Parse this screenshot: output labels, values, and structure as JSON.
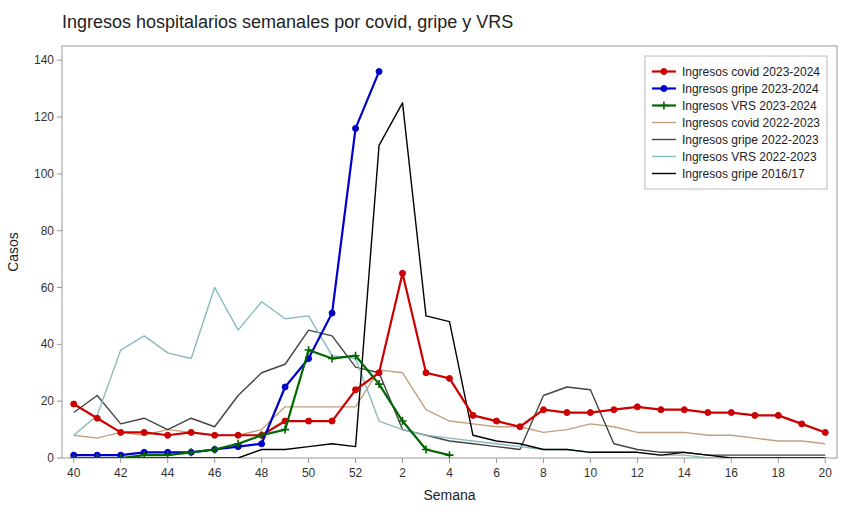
{
  "chart_data": {
    "type": "line",
    "title": "Ingresos hospitalarios semanales por covid, gripe y VRS",
    "x_label": "Semana",
    "y_label": "Casos",
    "categories": [
      "40",
      null,
      "42",
      null,
      "44",
      null,
      "46",
      null,
      "48",
      null,
      "50",
      null,
      "52",
      null,
      "2",
      null,
      "4",
      null,
      "6",
      null,
      "8",
      null,
      "10",
      null,
      "12",
      null,
      "14",
      null,
      "16",
      null,
      "18",
      null,
      "20"
    ],
    "ylim": [
      0,
      145
    ],
    "yticks": [
      0,
      20,
      40,
      60,
      80,
      100,
      120,
      140
    ],
    "grid": false,
    "legend": "upper right",
    "series": [
      {
        "name": "Ingresos covid 2023-2024",
        "color": "#cc0000",
        "marker": "circle",
        "line_style": "solid",
        "values": [
          19,
          14,
          9,
          9,
          8,
          9,
          8,
          8,
          8,
          13,
          13,
          13,
          24,
          30,
          65,
          30,
          28,
          15,
          13,
          11,
          17,
          16,
          16,
          17,
          18,
          17,
          17,
          16,
          16,
          15,
          15,
          12,
          9
        ]
      },
      {
        "name": "Ingresos gripe 2023-2024",
        "color": "#0000cc",
        "marker": "circle",
        "line_style": "solid",
        "values": [
          1,
          1,
          1,
          2,
          2,
          2,
          3,
          4,
          5,
          25,
          35,
          51,
          116,
          136,
          null,
          null,
          null,
          null,
          null,
          null,
          null,
          null,
          null,
          null,
          null,
          null,
          null,
          null,
          null,
          null,
          null,
          null,
          null
        ]
      },
      {
        "name": "Ingresos VRS 2023-2024",
        "color": "#006600",
        "marker": "plus",
        "line_style": "solid",
        "values": [
          0,
          0,
          0,
          1,
          1,
          2,
          3,
          5,
          8,
          10,
          38,
          35,
          36,
          26,
          13,
          3,
          1,
          null,
          null,
          null,
          null,
          null,
          null,
          null,
          null,
          null,
          null,
          null,
          null,
          null,
          null,
          null,
          null
        ]
      },
      {
        "name": "Ingresos covid 2022-2023",
        "color": "#c0a080",
        "line_style": "solid",
        "values": [
          8,
          7,
          9,
          8,
          10,
          9,
          8,
          8,
          10,
          18,
          18,
          18,
          18,
          31,
          30,
          17,
          13,
          12,
          11,
          11,
          9,
          10,
          12,
          11,
          9,
          9,
          9,
          8,
          8,
          7,
          6,
          6,
          5
        ]
      },
      {
        "name": "Ingresos gripe 2022-2023",
        "color": "#444444",
        "line_style": "solid",
        "values": [
          16,
          22,
          12,
          14,
          10,
          14,
          11,
          22,
          30,
          33,
          45,
          43,
          32,
          30,
          10,
          8,
          6,
          5,
          4,
          3,
          22,
          25,
          24,
          5,
          3,
          2,
          2,
          1,
          1,
          1,
          1,
          1,
          1
        ]
      },
      {
        "name": "Ingresos VRS 2022-2023",
        "color": "#88bbbb",
        "line_style": "solid",
        "values": [
          8,
          15,
          38,
          43,
          37,
          35,
          60,
          45,
          55,
          49,
          50,
          36,
          35,
          13,
          10,
          8,
          7,
          6,
          5,
          4,
          3,
          3,
          2,
          2,
          2,
          1,
          1,
          0,
          0,
          0,
          0,
          0,
          0
        ]
      },
      {
        "name": "Ingresos gripe 2016/17",
        "color": "#000000",
        "line_style": "solid",
        "values": [
          0,
          0,
          0,
          0,
          0,
          0,
          0,
          0,
          3,
          3,
          4,
          5,
          4,
          110,
          125,
          50,
          48,
          8,
          6,
          5,
          3,
          3,
          2,
          2,
          2,
          1,
          2,
          1,
          0,
          0,
          0,
          0,
          0
        ]
      }
    ]
  }
}
